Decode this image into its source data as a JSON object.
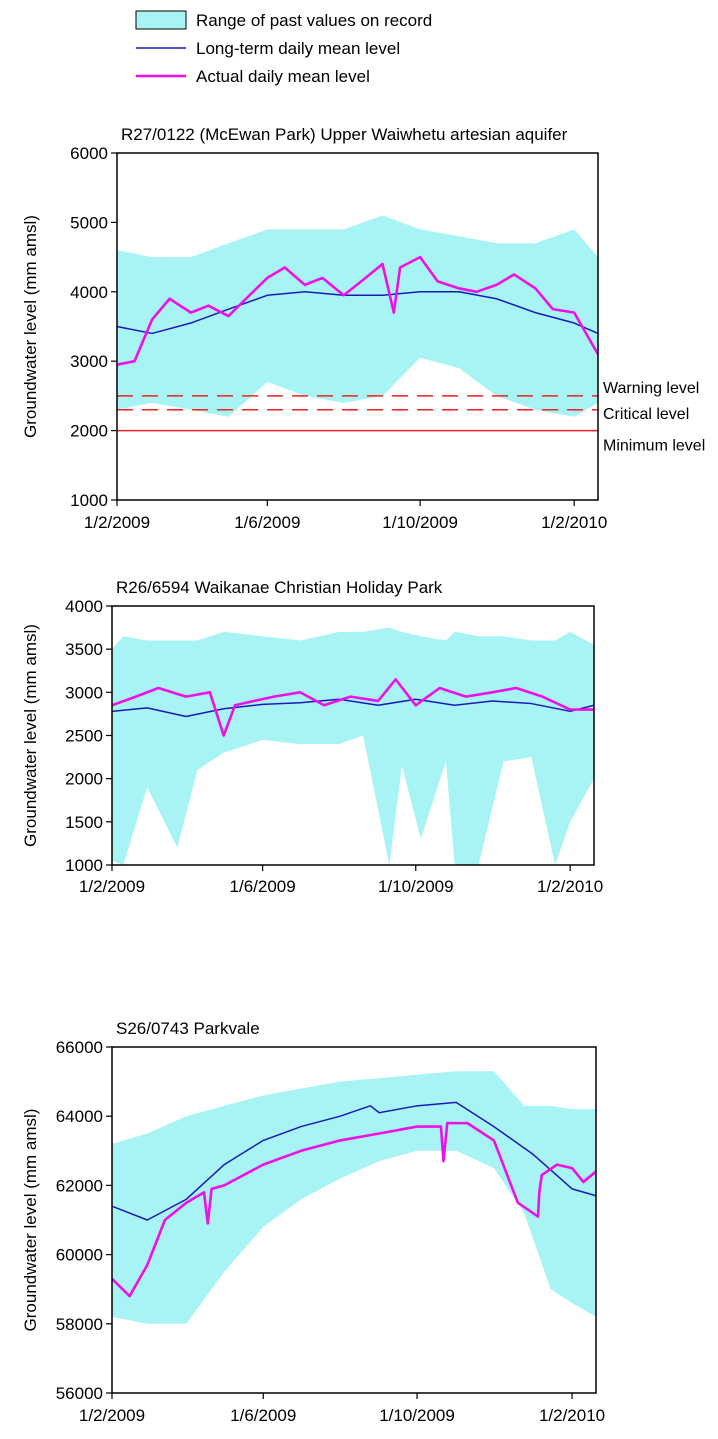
{
  "legend": {
    "items": [
      {
        "label": "Range of past values on record",
        "kind": "band",
        "color": "#a8f4f5"
      },
      {
        "label": "Long-term daily mean level",
        "kind": "line",
        "color": "#1a1ab8"
      },
      {
        "label": "Actual daily mean level",
        "kind": "line",
        "color": "#ee10e6"
      }
    ]
  },
  "colors": {
    "band": "#a8f4f5",
    "mean": "#1a1ab8",
    "actual": "#ee10e6",
    "ref": "#ee2222"
  },
  "chart_data": [
    {
      "type": "area",
      "title": "R27/0122 (McEwan Park) Upper Waiwhetu artesian aquifer",
      "ylabel": "Groundwater level (mm amsl)",
      "xlabel": "",
      "xlim": [
        "2009-02-01",
        "2010-02-20"
      ],
      "ylim": [
        1000,
        6000
      ],
      "yticks": [
        1000,
        2000,
        3000,
        4000,
        5000,
        6000
      ],
      "xticks": [
        "1/2/2009",
        "1/6/2009",
        "1/10/2009",
        "1/2/2010"
      ],
      "legend_position": "top",
      "grid": false,
      "reference_lines": [
        {
          "label": "Warning level",
          "value": 2500,
          "style": "dashed"
        },
        {
          "label": "Critical level",
          "value": 2300,
          "style": "dashed"
        },
        {
          "label": "Minimum level",
          "value": 2000,
          "style": "solid"
        }
      ],
      "series": [
        {
          "role": "range",
          "x": [
            "2009-02-01",
            "2009-03-01",
            "2009-04-01",
            "2009-05-01",
            "2009-06-01",
            "2009-07-01",
            "2009-08-01",
            "2009-09-01",
            "2009-10-01",
            "2009-11-01",
            "2009-12-01",
            "2010-01-01",
            "2010-02-01",
            "2010-02-20"
          ],
          "low": [
            2300,
            2400,
            2300,
            2200,
            2700,
            2500,
            2400,
            2500,
            3050,
            2900,
            2500,
            2300,
            2200,
            2400
          ],
          "high": [
            4600,
            4500,
            4500,
            4700,
            4900,
            4900,
            4900,
            5100,
            4900,
            4800,
            4700,
            4700,
            4900,
            4500
          ]
        },
        {
          "role": "mean",
          "name": "Long-term daily mean level",
          "x": [
            "2009-02-01",
            "2009-03-01",
            "2009-04-01",
            "2009-05-01",
            "2009-06-01",
            "2009-07-01",
            "2009-08-01",
            "2009-09-01",
            "2009-10-01",
            "2009-11-01",
            "2009-12-01",
            "2010-01-01",
            "2010-02-01",
            "2010-02-20"
          ],
          "y": [
            3500,
            3400,
            3550,
            3750,
            3950,
            4000,
            3950,
            3950,
            4000,
            4000,
            3900,
            3700,
            3550,
            3400
          ]
        },
        {
          "role": "actual",
          "name": "Actual daily mean level",
          "x": [
            "2009-02-01",
            "2009-02-15",
            "2009-03-01",
            "2009-03-15",
            "2009-04-01",
            "2009-04-15",
            "2009-05-01",
            "2009-05-15",
            "2009-06-01",
            "2009-06-15",
            "2009-07-01",
            "2009-07-15",
            "2009-08-01",
            "2009-08-15",
            "2009-09-01",
            "2009-09-10",
            "2009-09-15",
            "2009-10-01",
            "2009-10-15",
            "2009-11-01",
            "2009-11-15",
            "2009-12-01",
            "2009-12-15",
            "2010-01-01",
            "2010-01-15",
            "2010-02-01",
            "2010-02-20"
          ],
          "y": [
            2950,
            3000,
            3600,
            3900,
            3700,
            3800,
            3650,
            3900,
            4200,
            4350,
            4100,
            4200,
            3950,
            4150,
            4400,
            3700,
            4350,
            4500,
            4150,
            4050,
            4000,
            4100,
            4250,
            4050,
            3750,
            3700,
            3100
          ]
        }
      ]
    },
    {
      "type": "area",
      "title": "R26/6594 Waikanae Christian Holiday Park",
      "ylabel": "Groundwater level (mm amsl)",
      "xlabel": "",
      "xlim": [
        "2009-02-01",
        "2010-02-20"
      ],
      "ylim": [
        1000,
        4000
      ],
      "yticks": [
        1000,
        1500,
        2000,
        2500,
        3000,
        3500,
        4000
      ],
      "xticks": [
        "1/2/2009",
        "1/6/2009",
        "1/10/2009",
        "1/2/2010"
      ],
      "grid": false,
      "series": [
        {
          "role": "range",
          "x": [
            "2009-02-01",
            "2009-02-10",
            "2009-03-01",
            "2009-03-25",
            "2009-04-10",
            "2009-05-01",
            "2009-06-01",
            "2009-07-01",
            "2009-08-01",
            "2009-08-20",
            "2009-09-10",
            "2009-09-20",
            "2009-10-05",
            "2009-10-25",
            "2009-11-01",
            "2009-11-20",
            "2009-12-10",
            "2010-01-01",
            "2010-01-20",
            "2010-02-01",
            "2010-02-20"
          ],
          "low": [
            1050,
            1000,
            1900,
            1200,
            2100,
            2300,
            2450,
            2400,
            2400,
            2500,
            1000,
            2150,
            1300,
            2200,
            1000,
            1000,
            2200,
            2250,
            1000,
            1500,
            2000
          ],
          "high": [
            3500,
            3650,
            3600,
            3600,
            3600,
            3700,
            3650,
            3600,
            3700,
            3700,
            3750,
            3700,
            3650,
            3600,
            3700,
            3650,
            3650,
            3600,
            3600,
            3700,
            3550
          ]
        },
        {
          "role": "mean",
          "name": "Long-term daily mean level",
          "x": [
            "2009-02-01",
            "2009-03-01",
            "2009-04-01",
            "2009-05-01",
            "2009-06-01",
            "2009-07-01",
            "2009-08-01",
            "2009-09-01",
            "2009-10-01",
            "2009-11-01",
            "2009-12-01",
            "2010-01-01",
            "2010-02-01",
            "2010-02-20"
          ],
          "y": [
            2780,
            2820,
            2720,
            2810,
            2860,
            2880,
            2920,
            2850,
            2920,
            2850,
            2900,
            2870,
            2780,
            2850
          ]
        },
        {
          "role": "actual",
          "name": "Actual daily mean level",
          "x": [
            "2009-02-01",
            "2009-02-20",
            "2009-03-10",
            "2009-04-01",
            "2009-04-20",
            "2009-05-01",
            "2009-05-10",
            "2009-05-25",
            "2009-06-10",
            "2009-07-01",
            "2009-07-20",
            "2009-08-10",
            "2009-09-01",
            "2009-09-15",
            "2009-10-01",
            "2009-10-20",
            "2009-11-10",
            "2009-12-01",
            "2009-12-20",
            "2010-01-10",
            "2010-02-01",
            "2010-02-20"
          ],
          "y": [
            2850,
            2950,
            3050,
            2950,
            3000,
            2500,
            2850,
            2900,
            2950,
            3000,
            2850,
            2950,
            2900,
            3150,
            2850,
            3050,
            2950,
            3000,
            3050,
            2950,
            2800,
            2800
          ]
        }
      ]
    },
    {
      "type": "area",
      "title": "S26/0743 Parkvale",
      "ylabel": "Groundwater level (mm amsl)",
      "xlabel": "",
      "xlim": [
        "2009-02-01",
        "2010-02-20"
      ],
      "ylim": [
        56000,
        66000
      ],
      "yticks": [
        56000,
        58000,
        60000,
        62000,
        64000,
        66000
      ],
      "xticks": [
        "1/2/2009",
        "1/6/2009",
        "1/10/2009",
        "1/2/2010"
      ],
      "grid": false,
      "series": [
        {
          "role": "range",
          "x": [
            "2009-02-01",
            "2009-03-01",
            "2009-04-01",
            "2009-05-01",
            "2009-06-01",
            "2009-07-01",
            "2009-08-01",
            "2009-09-01",
            "2009-10-01",
            "2009-11-01",
            "2009-12-01",
            "2009-12-25",
            "2010-01-15",
            "2010-02-01",
            "2010-02-20"
          ],
          "low": [
            58200,
            58000,
            58000,
            59500,
            60800,
            61600,
            62200,
            62700,
            63000,
            63000,
            62500,
            61200,
            59000,
            58600,
            58200
          ],
          "high": [
            63200,
            63500,
            64000,
            64300,
            64600,
            64800,
            65000,
            65100,
            65200,
            65300,
            65300,
            64300,
            64300,
            64200,
            64200
          ]
        },
        {
          "role": "mean",
          "name": "Long-term daily mean level",
          "x": [
            "2009-02-01",
            "2009-03-01",
            "2009-04-01",
            "2009-05-01",
            "2009-06-01",
            "2009-07-01",
            "2009-08-01",
            "2009-08-25",
            "2009-09-01",
            "2009-10-01",
            "2009-11-01",
            "2009-12-01",
            "2010-01-01",
            "2010-02-01",
            "2010-02-20"
          ],
          "y": [
            61400,
            61000,
            61600,
            62600,
            63300,
            63700,
            64000,
            64300,
            64100,
            64300,
            64400,
            63700,
            62900,
            61900,
            61700
          ]
        },
        {
          "role": "actual",
          "name": "Actual daily mean level",
          "x": [
            "2009-02-01",
            "2009-02-15",
            "2009-03-01",
            "2009-03-15",
            "2009-04-01",
            "2009-04-15",
            "2009-04-18",
            "2009-04-21",
            "2009-05-01",
            "2009-06-01",
            "2009-07-01",
            "2009-08-01",
            "2009-09-01",
            "2009-10-01",
            "2009-10-20",
            "2009-10-22",
            "2009-10-25",
            "2009-11-10",
            "2009-12-01",
            "2009-12-20",
            "2010-01-05",
            "2010-01-06",
            "2010-01-08",
            "2010-01-20",
            "2010-02-01",
            "2010-02-10",
            "2010-02-20"
          ],
          "y": [
            59300,
            58800,
            59700,
            61000,
            61500,
            61800,
            60900,
            61900,
            62000,
            62600,
            63000,
            63300,
            63500,
            63700,
            63700,
            62700,
            63800,
            63800,
            63300,
            61500,
            61100,
            61800,
            62300,
            62600,
            62500,
            62100,
            62400
          ]
        }
      ]
    }
  ]
}
